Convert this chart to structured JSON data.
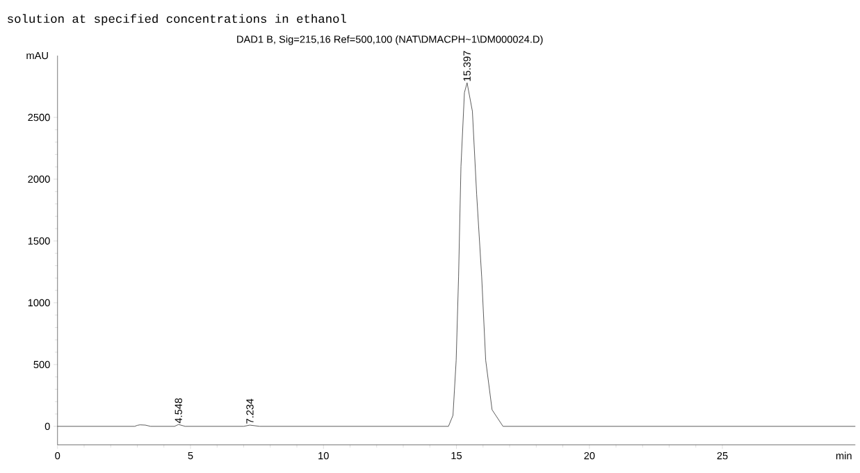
{
  "chart_data": {
    "type": "line",
    "title": "DAD1 B, Sig=215,16 Ref=500,100 (NAT\\DMACPH~1\\DM000024.D)",
    "xlabel": "min",
    "ylabel": "mAU",
    "annotations": [
      "solution at specified concentrations in ethanol",
      {
        "text": "4.548",
        "x": 4.548,
        "y": 15
      },
      {
        "text": "7.234",
        "x": 7.234,
        "y": 10
      },
      {
        "text": "15.397",
        "x": 15.397,
        "y": 2780
      }
    ],
    "series": [
      {
        "color": "#333333",
        "x": [
          0,
          2.9,
          3.0,
          3.1,
          3.3,
          3.5,
          4.4,
          4.55,
          4.8,
          7.0,
          7.23,
          7.6,
          14.4,
          14.7,
          14.87,
          14.99,
          15.08,
          15.17,
          15.3,
          15.4,
          15.6,
          15.76,
          15.95,
          16.1,
          16.34,
          16.75,
          17.5,
          30
        ],
        "values": [
          0,
          0,
          8,
          12,
          10,
          0,
          0,
          15,
          0,
          0,
          10,
          0,
          0,
          0,
          89,
          535,
          1208,
          2104,
          2700,
          2780,
          2550,
          1878,
          1208,
          535,
          134,
          0,
          0,
          0
        ]
      }
    ],
    "xlim": [
      0,
      30
    ],
    "ylim": [
      -150,
      3000
    ],
    "xticks": [
      0,
      5,
      10,
      15,
      20,
      25
    ],
    "yticks": [
      0,
      500,
      1000,
      1500,
      2000,
      2500
    ]
  }
}
